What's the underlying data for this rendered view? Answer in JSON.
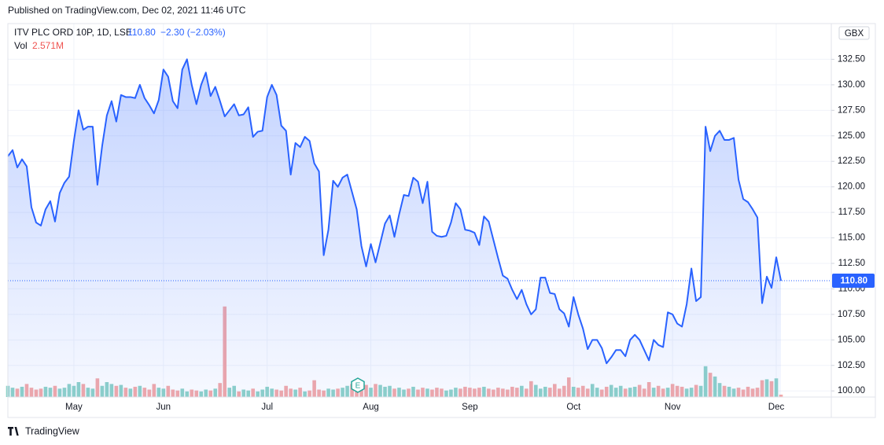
{
  "header": {
    "published": "Published on TradingView.com, Dec 02, 2021 11:46 UTC"
  },
  "footer": {
    "brand": "TradingView"
  },
  "chart_data": {
    "type": "line",
    "legend": {
      "symbol": "ITV PLC ORD 10P, 1D, LSE",
      "price": "110.80",
      "change": "−2.30 (−2.03%)",
      "vol_label": "Vol",
      "vol_value": "2.571M"
    },
    "currency": "GBX",
    "price_tag": "110.80",
    "earnings_marker": "E",
    "color": "#2962ff",
    "up_color": "#8fd2c9",
    "down_color": "#f3a9a9",
    "grid": true,
    "categories": [
      null,
      null,
      null,
      null,
      null,
      null,
      null,
      null,
      null,
      null,
      null,
      null,
      null,
      null,
      "May",
      null,
      null,
      null,
      null,
      null,
      null,
      null,
      null,
      null,
      null,
      null,
      null,
      null,
      null,
      null,
      null,
      null,
      null,
      "Jun",
      null,
      null,
      null,
      null,
      null,
      null,
      null,
      null,
      null,
      null,
      null,
      null,
      null,
      null,
      null,
      null,
      null,
      null,
      null,
      null,
      null,
      "Jul",
      null,
      null,
      null,
      null,
      null,
      null,
      null,
      null,
      null,
      null,
      null,
      null,
      null,
      null,
      null,
      null,
      null,
      null,
      null,
      null,
      null,
      "Aug",
      null,
      null,
      null,
      null,
      null,
      null,
      null,
      null,
      null,
      null,
      null,
      null,
      null,
      null,
      null,
      null,
      null,
      null,
      null,
      null,
      "Sep",
      null,
      null,
      null,
      null,
      null,
      null,
      null,
      null,
      null,
      null,
      null,
      null,
      null,
      null,
      null,
      null,
      null,
      null,
      null,
      null,
      null,
      "Oct",
      null,
      null,
      null,
      null,
      null,
      null,
      null,
      null,
      null,
      null,
      null,
      null,
      null,
      null,
      null,
      null,
      null,
      null,
      null,
      null,
      "Nov",
      null,
      null,
      null,
      null,
      null,
      null,
      null,
      null,
      null,
      null,
      null,
      null,
      null,
      null,
      null,
      null,
      null,
      null,
      null,
      null,
      null,
      "Dec",
      null
    ],
    "series": [
      {
        "name": "Price",
        "values": [
          123.0,
          123.6,
          121.9,
          122.7,
          122.0,
          118.0,
          116.5,
          116.2,
          117.8,
          118.6,
          116.6,
          119.4,
          120.4,
          121.0,
          124.5,
          127.5,
          125.6,
          125.9,
          125.9,
          120.2,
          124.0,
          127.0,
          128.4,
          126.4,
          129.0,
          128.8,
          128.8,
          128.7,
          130.0,
          128.7,
          128.0,
          127.2,
          128.5,
          131.5,
          130.8,
          128.4,
          127.7,
          131.5,
          132.5,
          130.0,
          128.1,
          130.0,
          131.2,
          128.9,
          129.8,
          128.4,
          126.9,
          127.5,
          128.1,
          127.0,
          127.1,
          127.8,
          124.9,
          125.4,
          125.5,
          128.8,
          130.0,
          129.0,
          126.0,
          125.5,
          121.2,
          124.3,
          123.9,
          124.9,
          124.5,
          122.3,
          121.5,
          113.3,
          115.8,
          120.6,
          120.0,
          120.9,
          121.2,
          119.5,
          117.8,
          114.2,
          112.2,
          114.4,
          112.6,
          114.5,
          116.4,
          117.2,
          115.1,
          117.3,
          119.2,
          119.1,
          120.9,
          120.5,
          118.4,
          120.5,
          115.6,
          115.2,
          115.1,
          115.2,
          116.5,
          118.4,
          117.8,
          115.8,
          115.7,
          115.5,
          114.3,
          117.1,
          116.6,
          114.8,
          113.0,
          111.3,
          111.0,
          109.9,
          109.0,
          109.9,
          108.5,
          107.5,
          108.0,
          111.1,
          111.1,
          109.6,
          109.5,
          108.0,
          107.6,
          106.3,
          109.2,
          107.5,
          106.1,
          104.1,
          105.0,
          105.0,
          104.2,
          102.7,
          103.3,
          104.0,
          104.0,
          103.4,
          105.0,
          105.5,
          105.0,
          104.0,
          103.0,
          105.0,
          104.5,
          104.3,
          107.7,
          107.5,
          106.6,
          106.3,
          108.5,
          112.0,
          108.8,
          109.2,
          125.9,
          123.5,
          125.0,
          125.5,
          124.6,
          124.6,
          124.8,
          120.7,
          118.8,
          118.5,
          117.8,
          117.0,
          108.6,
          111.2,
          110.1,
          113.1,
          110.8
        ]
      },
      {
        "name": "Vol",
        "values": [
          12,
          10,
          9,
          11,
          14,
          10,
          8,
          9,
          11,
          10,
          12,
          9,
          10,
          14,
          12,
          16,
          14,
          10,
          9,
          20,
          12,
          16,
          14,
          12,
          13,
          10,
          9,
          11,
          12,
          10,
          8,
          14,
          10,
          9,
          12,
          8,
          7,
          9,
          6,
          8,
          7,
          6,
          8,
          7,
          9,
          15,
          97,
          10,
          12,
          6,
          8,
          7,
          9,
          6,
          8,
          11,
          9,
          8,
          7,
          12,
          9,
          8,
          10,
          6,
          7,
          18,
          8,
          7,
          9,
          8,
          9,
          10,
          12,
          14,
          9,
          11,
          13,
          10,
          14,
          13,
          11,
          12,
          9,
          10,
          8,
          9,
          11,
          8,
          10,
          9,
          8,
          10,
          9,
          7,
          8,
          10,
          9,
          11,
          10,
          9,
          10,
          11,
          9,
          8,
          10,
          9,
          8,
          11,
          10,
          12,
          9,
          17,
          13,
          9,
          11,
          10,
          14,
          9,
          12,
          21,
          11,
          10,
          12,
          9,
          14,
          10,
          8,
          11,
          13,
          10,
          12,
          9,
          10,
          11,
          13,
          9,
          16,
          10,
          12,
          9,
          10,
          14,
          12,
          11,
          9,
          10,
          13,
          12,
          33,
          26,
          22,
          15,
          12,
          11,
          9,
          10,
          8,
          11,
          9,
          10,
          18,
          19,
          17,
          20,
          2.571
        ],
        "axis": "volume"
      }
    ],
    "ylim": [
      99.4,
      136
    ],
    "vol_lim": [
      0,
      400
    ],
    "yticks": [
      {
        "value": 100,
        "label": "100.00"
      },
      {
        "value": 102.5,
        "label": "102.50"
      },
      {
        "value": 105,
        "label": "105.00"
      },
      {
        "value": 107.5,
        "label": "107.50"
      },
      {
        "value": 110,
        "label": "110.00"
      },
      {
        "value": 112.5,
        "label": "112.50"
      },
      {
        "value": 115,
        "label": "115.00"
      },
      {
        "value": 117.5,
        "label": "117.50"
      },
      {
        "value": 120,
        "label": "120.00"
      },
      {
        "value": 122.5,
        "label": "122.50"
      },
      {
        "value": 125,
        "label": "125.00"
      },
      {
        "value": 127.5,
        "label": "127.50"
      },
      {
        "value": 130,
        "label": "130.00"
      },
      {
        "value": 132.5,
        "label": "132.50"
      }
    ]
  }
}
